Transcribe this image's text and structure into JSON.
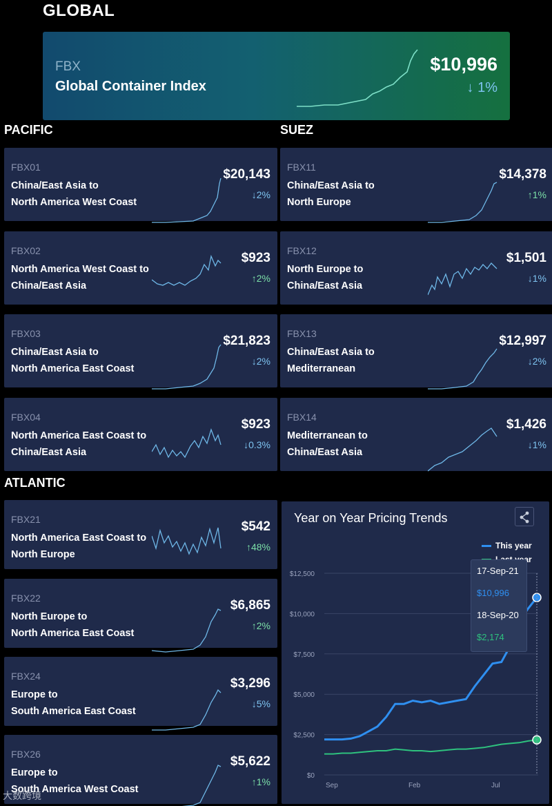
{
  "sections": {
    "global": "GLOBAL",
    "pacific": "PACIFIC",
    "suez": "SUEZ",
    "atlantic": "ATLANTIC"
  },
  "hero": {
    "code": "FBX",
    "name": "Global Container Index",
    "price": "$10,996",
    "change": "↓ 1%"
  },
  "pacific": [
    {
      "code": "FBX01",
      "line1": "China/East Asia to",
      "line2": "North America West Coast",
      "price": "$20,143",
      "change": "↓2%",
      "dir": "down"
    },
    {
      "code": "FBX02",
      "line1": "North America West Coast to",
      "line2": "China/East Asia",
      "price": "$923",
      "change": "↑2%",
      "dir": "up"
    },
    {
      "code": "FBX03",
      "line1": "China/East Asia to",
      "line2": "North America East Coast",
      "price": "$21,823",
      "change": "↓2%",
      "dir": "down"
    },
    {
      "code": "FBX04",
      "line1": "North America East Coast to",
      "line2": "China/East Asia",
      "price": "$923",
      "change": "↓0.3%",
      "dir": "down"
    }
  ],
  "suez": [
    {
      "code": "FBX11",
      "line1": "China/East Asia to",
      "line2": "North Europe",
      "price": "$14,378",
      "change": "↑1%",
      "dir": "up"
    },
    {
      "code": "FBX12",
      "line1": "North Europe to",
      "line2": "China/East Asia",
      "price": "$1,501",
      "change": "↓1%",
      "dir": "down"
    },
    {
      "code": "FBX13",
      "line1": "China/East Asia to",
      "line2": "Mediterranean",
      "price": "$12,997",
      "change": "↓2%",
      "dir": "down"
    },
    {
      "code": "FBX14",
      "line1": "Mediterranean to",
      "line2": "China/East Asia",
      "price": "$1,426",
      "change": "↓1%",
      "dir": "down"
    }
  ],
  "atlantic": [
    {
      "code": "FBX21",
      "line1": "North America East Coast to",
      "line2": "North Europe",
      "price": "$542",
      "change": "↑48%",
      "dir": "up"
    },
    {
      "code": "FBX22",
      "line1": "North Europe to",
      "line2": "North America East Coast",
      "price": "$6,865",
      "change": "↑2%",
      "dir": "up"
    },
    {
      "code": "FBX24",
      "line1": "Europe to",
      "line2": "South America East Coast",
      "price": "$3,296",
      "change": "↓5%",
      "dir": "down"
    },
    {
      "code": "FBX26",
      "line1": "Europe to",
      "line2": "South America West Coast",
      "price": "$5,622",
      "change": "↑1%",
      "dir": "up"
    }
  ],
  "trend": {
    "title": "Year on Year Pricing Trends",
    "legend": [
      "This year",
      "Last year"
    ],
    "tooltip": {
      "date1": "17-Sep-21",
      "value1": "$10,996",
      "date2": "18-Sep-20",
      "value2": "$2,174"
    }
  },
  "chart_data": {
    "type": "line",
    "title": "Year on Year Pricing Trends",
    "x_ticks": [
      "Sep",
      "Feb",
      "Jul"
    ],
    "y_ticks": [
      "$12,500",
      "$10,000",
      "$7,500",
      "$5,000",
      "$2,500",
      "$0"
    ],
    "ylim": [
      0,
      12500
    ],
    "series": [
      {
        "name": "This year",
        "color": "#2f8ff0",
        "values": [
          2200,
          2200,
          2200,
          2250,
          2400,
          2700,
          3000,
          3600,
          4400,
          4400,
          4600,
          4500,
          4600,
          4400,
          4500,
          4600,
          4700,
          5500,
          6200,
          6900,
          7000,
          8000,
          9500,
          10300,
          10996
        ]
      },
      {
        "name": "Last year",
        "color": "#2ec27e",
        "values": [
          1300,
          1300,
          1350,
          1350,
          1400,
          1450,
          1500,
          1500,
          1600,
          1550,
          1500,
          1500,
          1450,
          1500,
          1550,
          1600,
          1600,
          1650,
          1700,
          1800,
          1900,
          1950,
          2000,
          2100,
          2174
        ]
      }
    ],
    "grid": true
  },
  "watermark": "大数跨境",
  "colors": {
    "up": "#7ce0a8",
    "down": "#7ec3f0",
    "this_year": "#2f8ff0",
    "last_year": "#2ec27e"
  }
}
